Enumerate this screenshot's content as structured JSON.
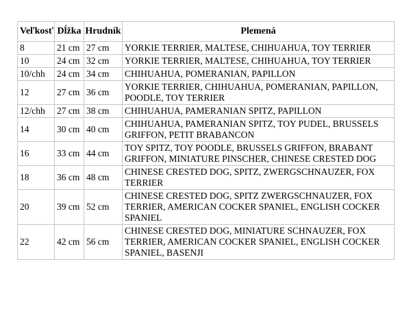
{
  "page": {
    "background_color": "#ffffff",
    "text_color": "#000000",
    "table_border_color": "#c6c6c6"
  },
  "table": {
    "headers": {
      "size": "Veľkosť",
      "length": "Dĺžka",
      "chest": "Hrudník",
      "breeds": "Plemená"
    },
    "rows": [
      {
        "size": "8",
        "length": "21 cm",
        "chest": "27 cm",
        "breeds": "YORKIE TERRIER, MALTESE, CHIHUAHUA, TOY TERRIER"
      },
      {
        "size": "10",
        "length": "24 cm",
        "chest": "32 cm",
        "breeds": "YORKIE TERRIER, MALTESE, CHIHUAHUA, TOY TERRIER"
      },
      {
        "size": "10/chh",
        "length": "24 cm",
        "chest": "34 cm",
        "breeds": "CHIHUAHUA, POMERANIAN, PAPILLON"
      },
      {
        "size": "12",
        "length": "27 cm",
        "chest": "36 cm",
        "breeds": "YORKIE TERRIER, CHIHUAHUA, POMERANIAN, PAPILLON, POODLE, TOY TERRIER"
      },
      {
        "size": "12/chh",
        "length": "27 cm",
        "chest": "38 cm",
        "breeds": "CHIHUAHUA, PAMERANIAN SPITZ, PAPILLON"
      },
      {
        "size": "14",
        "length": "30 cm",
        "chest": "40 cm",
        "breeds": "CHIHUAHUA, PAMERANIAN SPITZ, TOY PUDEL, BRUSSELS GRIFFON, PETIT BRABANCON"
      },
      {
        "size": "16",
        "length": "33 cm",
        "chest": "44 cm",
        "breeds": "TOY SPITZ, TOY POODLE, BRUSSELS GRIFFON, BRABANT GRIFFON, MINIATURE PINSCHER, CHINESE CRESTED DOG"
      },
      {
        "size": "18",
        "length": "36 cm",
        "chest": "48 cm",
        "breeds": "CHINESE CRESTED DOG, SPITZ, ZWERGSCHNAUZER, FOX TERRIER"
      },
      {
        "size": "20",
        "length": "39 cm",
        "chest": "52 cm",
        "breeds": "CHINESE CRESTED DOG, SPITZ ZWERGSCHNAUZER, FOX TERRIER, AMERICAN COCKER SPANIEL, ENGLISH COCKER SPANIEL"
      },
      {
        "size": "22",
        "length": "42 cm",
        "chest": "56 cm",
        "breeds": "CHINESE CRESTED DOG, MINIATURE SCHNAUZER, FOX TERRIER, AMERICAN COCKER SPANIEL, ENGLISH COCKER SPANIEL, BASENJI"
      }
    ]
  },
  "chart_data": {
    "type": "table",
    "title": "",
    "columns": [
      "Veľkosť",
      "Dĺžka",
      "Hrudník",
      "Plemená"
    ],
    "rows": [
      [
        "8",
        "21 cm",
        "27 cm",
        "YORKIE TERRIER, MALTESE, CHIHUAHUA, TOY TERRIER"
      ],
      [
        "10",
        "24 cm",
        "32 cm",
        "YORKIE TERRIER, MALTESE, CHIHUAHUA, TOY TERRIER"
      ],
      [
        "10/chh",
        "24 cm",
        "34 cm",
        "CHIHUAHUA, POMERANIAN, PAPILLON"
      ],
      [
        "12",
        "27 cm",
        "36 cm",
        "YORKIE TERRIER, CHIHUAHUA, POMERANIAN, PAPILLON, POODLE, TOY TERRIER"
      ],
      [
        "12/chh",
        "27 cm",
        "38 cm",
        "CHIHUAHUA, PAMERANIAN SPITZ, PAPILLON"
      ],
      [
        "14",
        "30 cm",
        "40 cm",
        "CHIHUAHUA, PAMERANIAN SPITZ, TOY PUDEL, BRUSSELS GRIFFON, PETIT BRABANCON"
      ],
      [
        "16",
        "33 cm",
        "44 cm",
        "TOY SPITZ, TOY POODLE, BRUSSELS GRIFFON, BRABANT GRIFFON, MINIATURE PINSCHER, CHINESE CRESTED DOG"
      ],
      [
        "18",
        "36 cm",
        "48 cm",
        "CHINESE CRESTED DOG, SPITZ, ZWERGSCHNAUZER, FOX TERRIER"
      ],
      [
        "20",
        "39 cm",
        "52 cm",
        "CHINESE CRESTED DOG, SPITZ ZWERGSCHNAUZER, FOX TERRIER, AMERICAN COCKER SPANIEL, ENGLISH COCKER SPANIEL"
      ],
      [
        "22",
        "42 cm",
        "56 cm",
        "CHINESE CRESTED DOG, MINIATURE SCHNAUZER, FOX TERRIER, AMERICAN COCKER SPANIEL, ENGLISH COCKER SPANIEL, BASENJI"
      ]
    ]
  }
}
